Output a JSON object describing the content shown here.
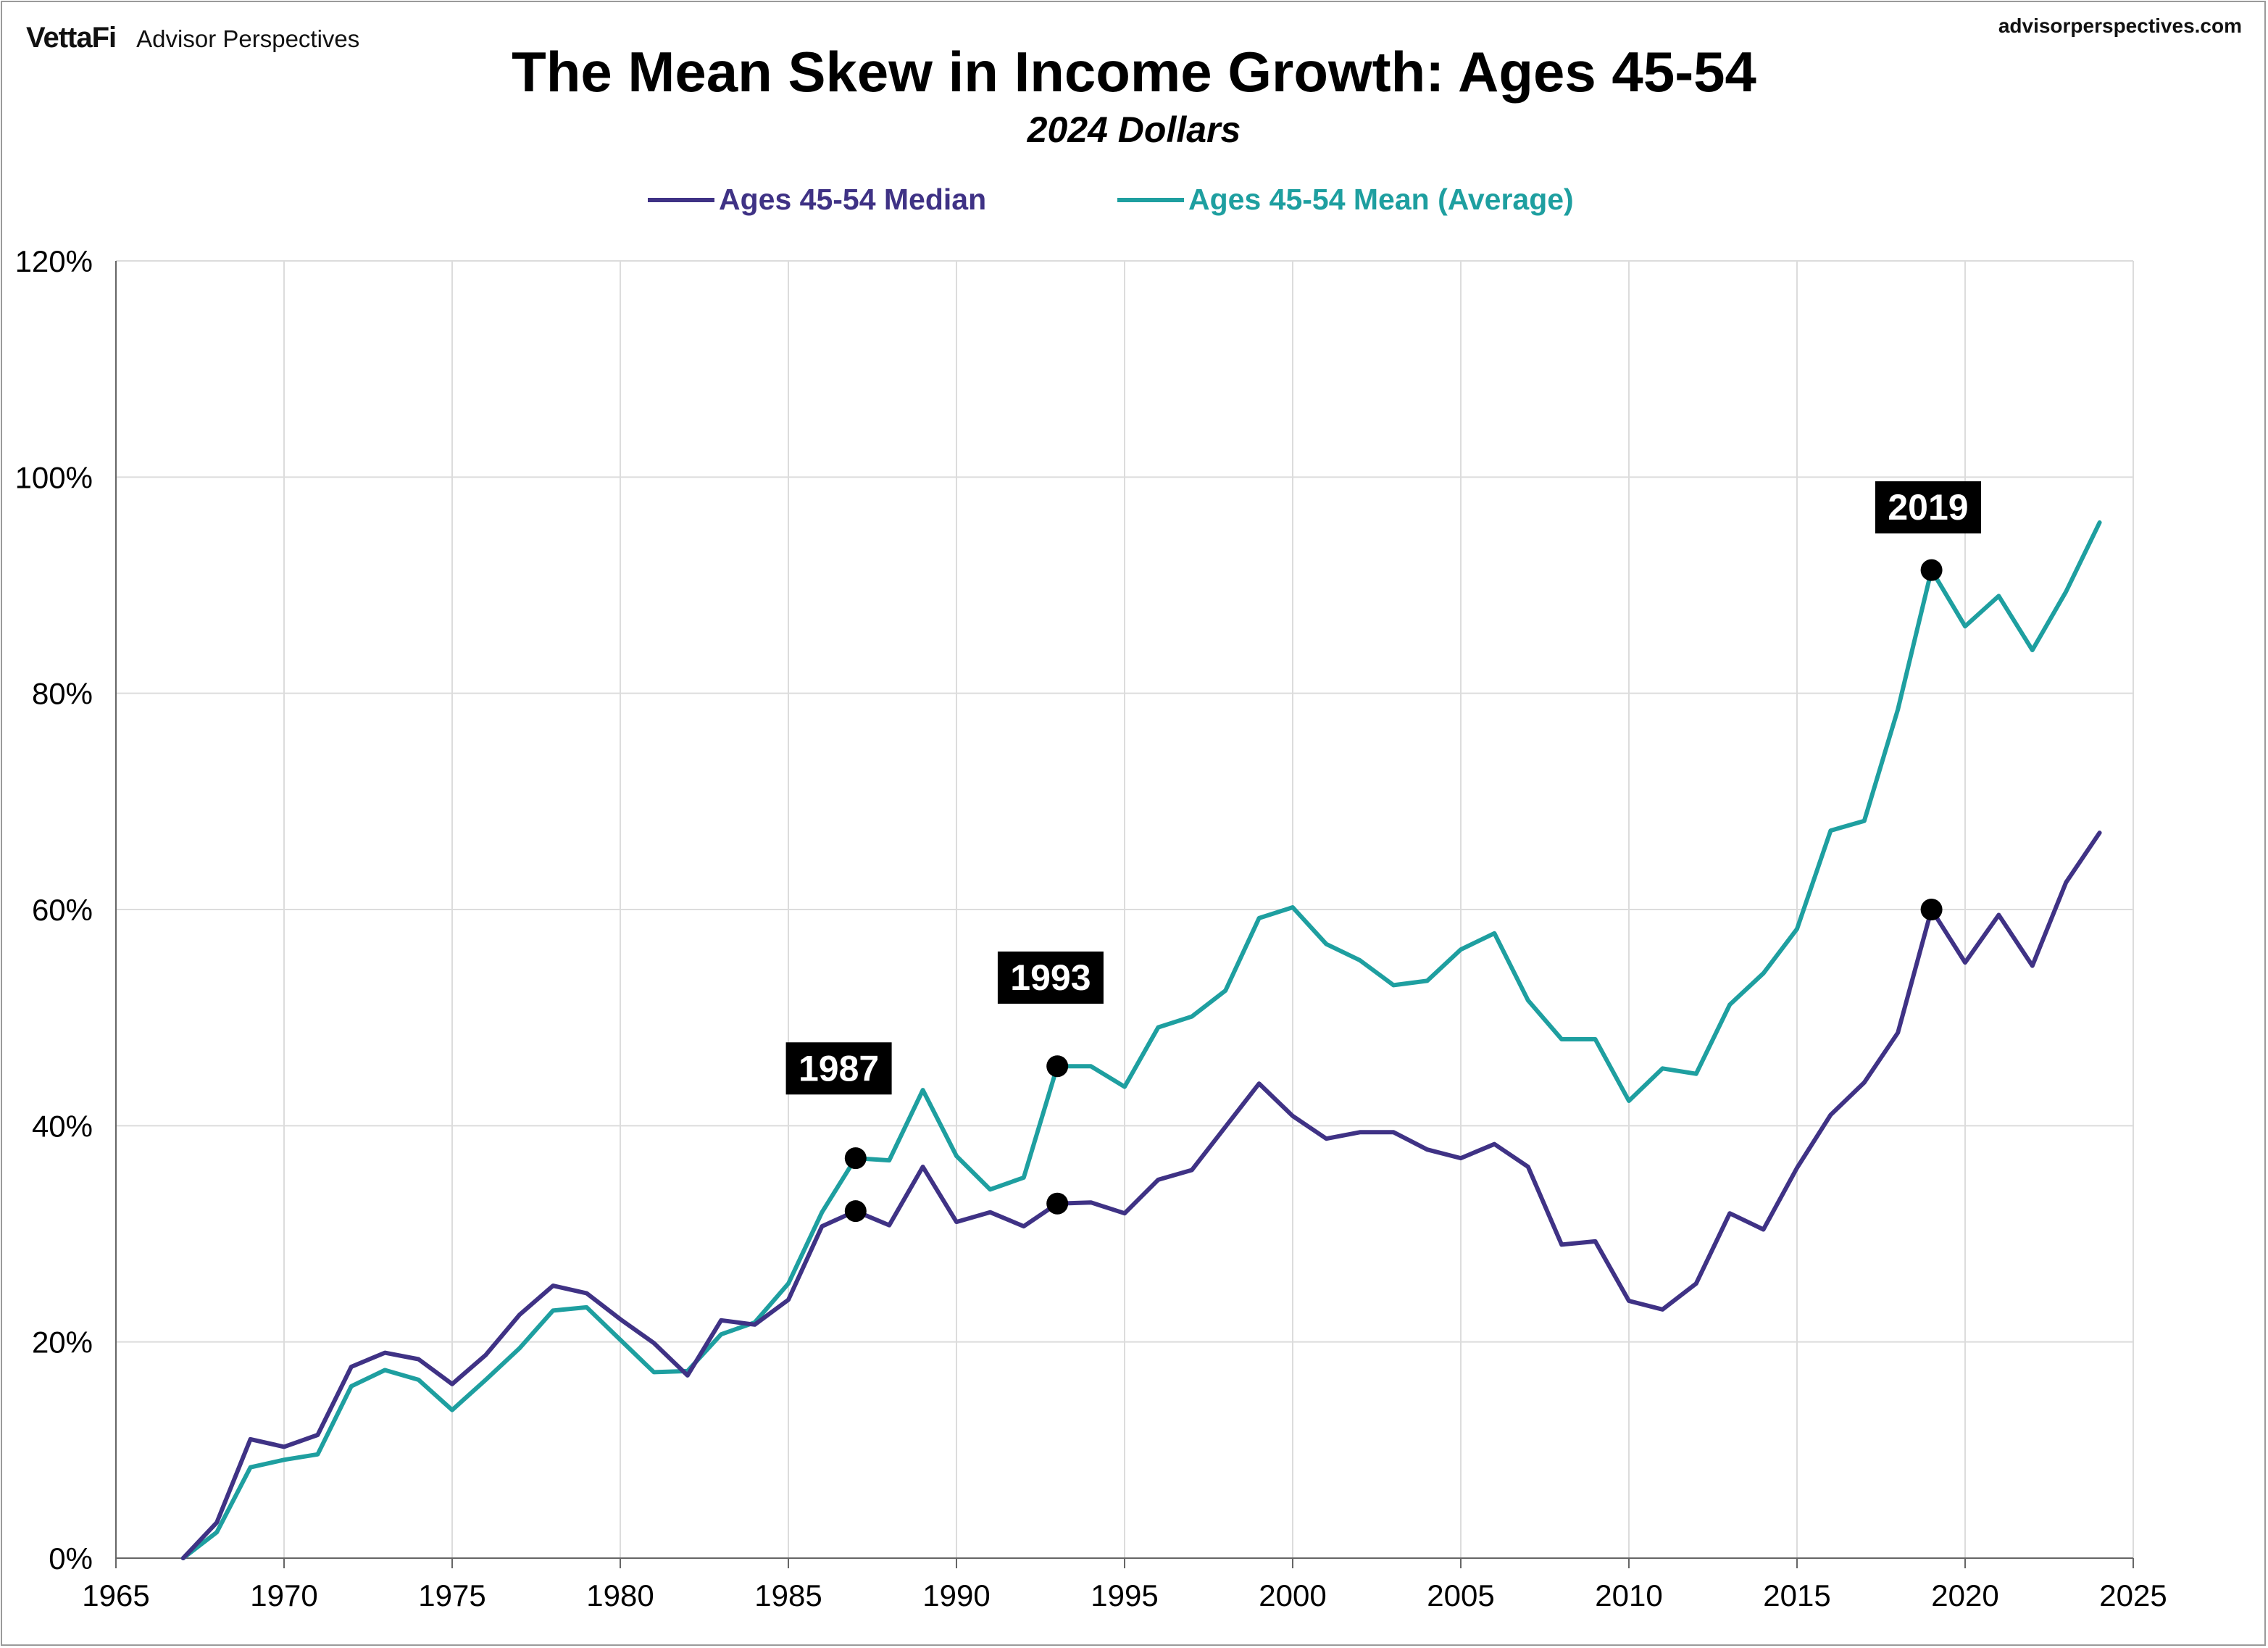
{
  "header": {
    "brand_logo": "VettaFi",
    "brand_name": "Advisor Perspectives",
    "site_url": "advisorperspectives.com"
  },
  "chart_data": {
    "type": "line",
    "title": "The Mean Skew in Income Growth: Ages 45-54",
    "subtitle": "2024 Dollars",
    "xlabel": "",
    "ylabel": "",
    "xlim": [
      1965,
      2025
    ],
    "ylim": [
      0,
      120
    ],
    "x_ticks": [
      1965,
      1970,
      1975,
      1980,
      1985,
      1990,
      1995,
      2000,
      2005,
      2010,
      2015,
      2020,
      2025
    ],
    "y_ticks": [
      0,
      20,
      40,
      60,
      80,
      100,
      120
    ],
    "y_tick_labels": [
      "0%",
      "20%",
      "40%",
      "60%",
      "80%",
      "100%",
      "120%"
    ],
    "grid": true,
    "legend_position": "top-center",
    "x": [
      1967,
      1968,
      1969,
      1970,
      1971,
      1972,
      1973,
      1974,
      1975,
      1976,
      1977,
      1978,
      1979,
      1980,
      1981,
      1982,
      1983,
      1984,
      1985,
      1986,
      1987,
      1988,
      1989,
      1990,
      1991,
      1992,
      1993,
      1994,
      1995,
      1996,
      1997,
      1998,
      1999,
      2000,
      2001,
      2002,
      2003,
      2004,
      2005,
      2006,
      2007,
      2008,
      2009,
      2010,
      2011,
      2012,
      2013,
      2014,
      2015,
      2016,
      2017,
      2018,
      2019,
      2020,
      2021,
      2022,
      2023,
      2024
    ],
    "series": [
      {
        "name": "Ages 45-54 Median",
        "color": "#3f3285",
        "values": [
          0,
          3.3,
          11.0,
          10.3,
          11.4,
          17.7,
          19.0,
          18.4,
          16.1,
          18.8,
          22.5,
          25.2,
          24.5,
          22.1,
          19.9,
          16.9,
          22.0,
          21.6,
          23.9,
          30.7,
          32.1,
          30.8,
          36.2,
          31.1,
          32.0,
          30.7,
          32.8,
          32.9,
          31.9,
          35.0,
          35.9,
          39.9,
          43.9,
          40.9,
          38.8,
          39.4,
          39.4,
          37.8,
          37.0,
          38.3,
          36.2,
          29.0,
          29.3,
          23.8,
          23.0,
          25.4,
          31.9,
          30.4,
          36.1,
          41.0,
          44.0,
          48.6,
          60.0,
          55.1,
          59.5,
          54.8,
          62.5,
          67.1
        ]
      },
      {
        "name": "Ages 45-54 Mean (Average)",
        "color": "#1e9fa0",
        "values": [
          0,
          2.4,
          8.4,
          9.1,
          9.6,
          15.9,
          17.4,
          16.5,
          13.7,
          16.5,
          19.4,
          22.9,
          23.2,
          20.2,
          17.2,
          17.3,
          20.7,
          21.8,
          25.4,
          32.0,
          37.0,
          36.8,
          43.3,
          37.2,
          34.1,
          35.2,
          45.5,
          45.5,
          43.6,
          49.1,
          50.1,
          52.5,
          59.2,
          60.2,
          56.8,
          55.3,
          53.0,
          53.4,
          56.3,
          57.8,
          51.6,
          48.0,
          48.0,
          42.3,
          45.3,
          44.8,
          51.2,
          54.1,
          58.2,
          67.3,
          68.2,
          78.5,
          91.4,
          86.2,
          89.0,
          84.0,
          89.4,
          95.8
        ]
      }
    ],
    "highlight_markers": [
      {
        "x": 1987,
        "median": 32.1,
        "mean": 37.0
      },
      {
        "x": 1993,
        "median": 32.8,
        "mean": 45.5
      },
      {
        "x": 2019,
        "median": 60.0,
        "mean": 91.4
      }
    ],
    "annotations": [
      {
        "text": "1987",
        "x": 1986.5,
        "y": 45.3
      },
      {
        "text": "1993",
        "x": 1992.8,
        "y": 53.7
      },
      {
        "text": "2019",
        "x": 2018.9,
        "y": 97.2
      }
    ]
  }
}
